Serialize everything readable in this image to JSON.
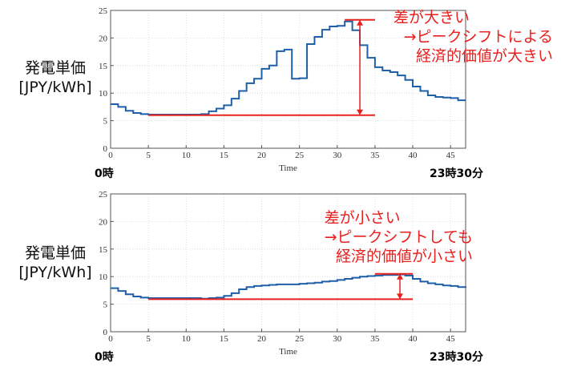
{
  "chart_data": [
    {
      "type": "line",
      "step": "post",
      "ylabel": [
        "発電単価",
        "[JPY/kWh]"
      ],
      "xlabel": "Time",
      "xlim": [
        0,
        47
      ],
      "ylim": [
        0,
        25
      ],
      "xticks": [
        0,
        5,
        10,
        15,
        20,
        25,
        30,
        35,
        40,
        45
      ],
      "yticks": [
        0,
        5,
        10,
        15,
        20,
        25
      ],
      "grid": true,
      "x_start_label": "0時",
      "x_end_label": "23時30分",
      "series_color": "#1f5fa8",
      "annotation_color": "#e8201e",
      "annotation_text": [
        "差が大きい",
        "→ピークシフトによる",
        "経済的価値が大きい"
      ],
      "reference_lines": [
        {
          "y": 6.0,
          "x_from": 5,
          "x_to": 35
        },
        {
          "y": 23.3,
          "x_from": 31,
          "x_to": 35
        }
      ],
      "difference_arrow": {
        "x": 33,
        "y_from": 6.0,
        "y_to": 23.3
      },
      "x": [
        0,
        1,
        2,
        3,
        4,
        5,
        6,
        7,
        8,
        9,
        10,
        11,
        12,
        13,
        14,
        15,
        16,
        17,
        18,
        19,
        20,
        21,
        22,
        23,
        24,
        25,
        26,
        27,
        28,
        29,
        30,
        31,
        32,
        33,
        34,
        35,
        36,
        37,
        38,
        39,
        40,
        41,
        42,
        43,
        44,
        45,
        46,
        47
      ],
      "values": [
        8.0,
        7.5,
        6.8,
        6.4,
        6.2,
        6.1,
        6.1,
        6.1,
        6.1,
        6.1,
        6.1,
        6.1,
        6.2,
        6.7,
        7.2,
        7.8,
        9.0,
        10.4,
        11.8,
        12.6,
        14.4,
        15.0,
        17.6,
        17.9,
        12.6,
        12.7,
        18.9,
        20.2,
        21.5,
        22.1,
        22.2,
        23.0,
        21.4,
        18.7,
        16.4,
        14.7,
        14.1,
        13.8,
        13.2,
        12.4,
        11.2,
        10.4,
        9.6,
        9.3,
        9.2,
        9.1,
        8.7,
        8.7
      ]
    },
    {
      "type": "line",
      "step": "post",
      "ylabel": [
        "発電単価",
        "[JPY/kWh]"
      ],
      "xlabel": "Time",
      "xlim": [
        0,
        47
      ],
      "ylim": [
        0,
        25
      ],
      "xticks": [
        0,
        5,
        10,
        15,
        20,
        25,
        30,
        35,
        40,
        45
      ],
      "yticks": [
        0,
        5,
        10,
        15,
        20,
        25
      ],
      "grid": true,
      "x_start_label": "0時",
      "x_end_label": "23時30分",
      "series_color": "#1f5fa8",
      "annotation_color": "#e8201e",
      "annotation_text": [
        "差が小さい",
        "→ピークシフトしても",
        "経済的価値が小さい"
      ],
      "reference_lines": [
        {
          "y": 5.9,
          "x_from": 5,
          "x_to": 40
        },
        {
          "y": 10.5,
          "x_from": 35,
          "x_to": 40
        }
      ],
      "difference_arrow": {
        "x": 38.3,
        "y_from": 5.9,
        "y_to": 10.5
      },
      "x": [
        0,
        1,
        2,
        3,
        4,
        5,
        6,
        7,
        8,
        9,
        10,
        11,
        12,
        13,
        14,
        15,
        16,
        17,
        18,
        19,
        20,
        21,
        22,
        23,
        24,
        25,
        26,
        27,
        28,
        29,
        30,
        31,
        32,
        33,
        34,
        35,
        36,
        37,
        38,
        39,
        40,
        41,
        42,
        43,
        44,
        45,
        46,
        47
      ],
      "values": [
        7.9,
        7.4,
        6.8,
        6.4,
        6.2,
        6.1,
        6.1,
        6.1,
        6.1,
        6.1,
        6.1,
        6.1,
        6.0,
        6.1,
        6.2,
        6.5,
        7.0,
        7.7,
        8.1,
        8.3,
        8.4,
        8.5,
        8.6,
        8.6,
        8.6,
        8.7,
        8.8,
        8.9,
        9.1,
        9.2,
        9.4,
        9.6,
        9.8,
        10.0,
        10.1,
        10.2,
        10.3,
        10.3,
        10.4,
        10.2,
        9.6,
        9.1,
        8.8,
        8.6,
        8.4,
        8.3,
        8.1,
        8.0
      ]
    }
  ]
}
